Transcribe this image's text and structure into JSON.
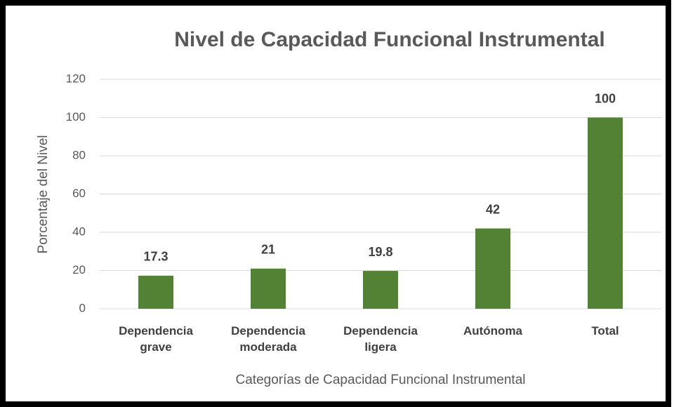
{
  "chart_data": {
    "type": "bar",
    "title": "Nivel de Capacidad Funcional Instrumental",
    "categories": [
      "Dependencia grave",
      "Dependencia moderada",
      "Dependencia ligera",
      "Autónoma",
      "Total"
    ],
    "values": [
      17.3,
      21,
      19.8,
      42,
      100
    ],
    "color": "#548235",
    "ylim": [
      0,
      120
    ],
    "yticks": [
      0,
      20,
      40,
      60,
      80,
      100,
      120
    ],
    "grid": true,
    "ylabel": "Porcentaje del Nivel",
    "xlabel": "Categorías de Capacidad Funcional Instrumental"
  }
}
